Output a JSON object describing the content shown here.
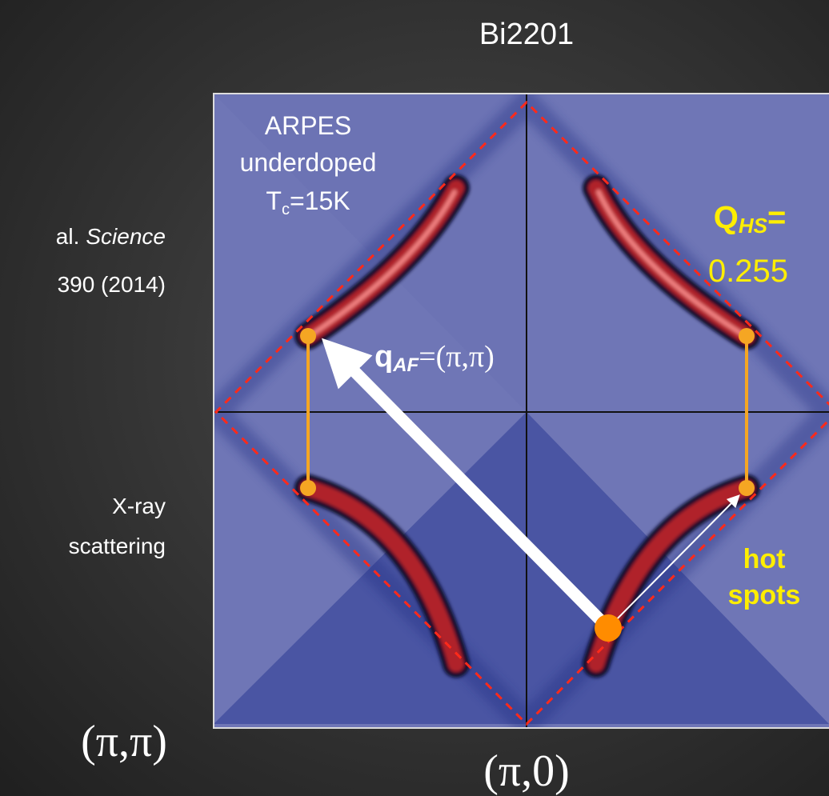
{
  "title": "Bi2201",
  "arpes_label": {
    "lines": [
      "ARPES",
      "underdoped"
    ],
    "tc": {
      "symbol": "T",
      "subscript": "c",
      "rest": "=15K"
    }
  },
  "citation": {
    "authors": "al.",
    "journal": "Science",
    "reference": "390 (2014)"
  },
  "xray_label": [
    "X-ray",
    "scattering"
  ],
  "q_hs": {
    "symbol": "Q",
    "subscript": "HS",
    "equals": "=",
    "value": 0.255
  },
  "q_af": {
    "symbol": "q",
    "subscript": "AF",
    "rest": "=(π,π)"
  },
  "hot_spots": [
    "hot",
    "spots"
  ],
  "corner_labels": {
    "left": "(π,π)",
    "bottom": "(π,0)"
  }
}
